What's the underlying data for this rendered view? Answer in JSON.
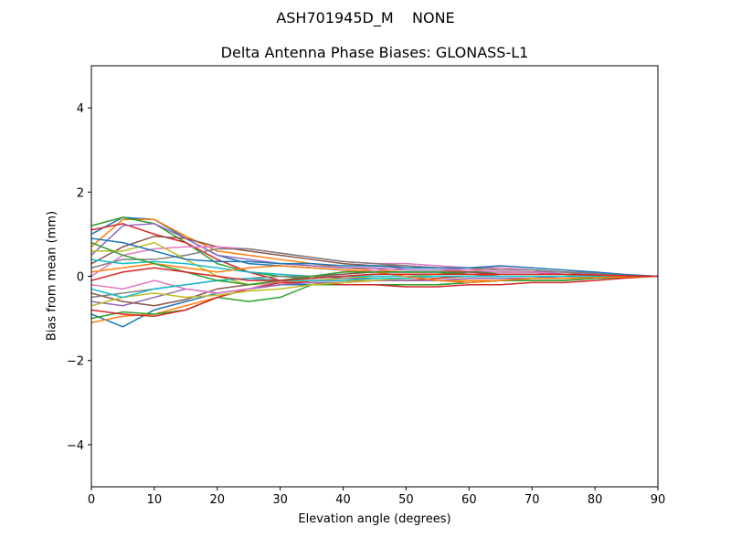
{
  "chart_data": {
    "type": "line",
    "suptitle": "ASH701945D_M    NONE",
    "title": "Delta Antenna Phase Biases: GLONASS-L1",
    "xlabel": "Elevation angle (degrees)",
    "ylabel": "Bias from mean (mm)",
    "xlim": [
      0,
      90
    ],
    "ylim": [
      -5,
      5
    ],
    "xticks": [
      "0",
      "10",
      "20",
      "30",
      "40",
      "50",
      "60",
      "70",
      "80",
      "90"
    ],
    "yticks": [
      "−4",
      "−2",
      "0",
      "2",
      "4"
    ],
    "grid": false,
    "x": [
      0,
      5,
      10,
      15,
      20,
      25,
      30,
      35,
      40,
      45,
      50,
      55,
      60,
      65,
      70,
      75,
      80,
      85,
      90
    ],
    "colors": [
      "#1f77b4",
      "#ff7f0e",
      "#2ca02c",
      "#d62728",
      "#9467bd",
      "#8c564b",
      "#e377c2",
      "#7f7f7f",
      "#bcbd22",
      "#17becf"
    ],
    "series": [
      {
        "values": [
          1.0,
          1.4,
          1.35,
          0.9,
          0.5,
          0.3,
          0.25,
          0.2,
          0.15,
          0.1,
          0.1,
          0.1,
          0.1,
          0.1,
          0.1,
          0.05,
          0.05,
          0.02,
          0
        ]
      },
      {
        "values": [
          0.7,
          1.35,
          1.35,
          0.95,
          0.6,
          0.5,
          0.4,
          0.3,
          0.2,
          0.15,
          0.1,
          0.1,
          0.15,
          0.2,
          0.15,
          0.1,
          0.05,
          0.02,
          0
        ]
      },
      {
        "values": [
          1.2,
          1.4,
          1.25,
          0.8,
          0.3,
          0.1,
          0.0,
          -0.05,
          0.0,
          0.05,
          0.05,
          0.05,
          0.1,
          0.1,
          0.1,
          0.1,
          0.05,
          0.02,
          0
        ]
      },
      {
        "values": [
          1.1,
          1.25,
          1.0,
          0.8,
          0.4,
          0.1,
          -0.1,
          -0.15,
          -0.15,
          -0.1,
          -0.1,
          -0.05,
          0,
          0.05,
          0.05,
          0.05,
          0.05,
          0.02,
          0
        ]
      },
      {
        "values": [
          0.5,
          1.2,
          1.25,
          0.9,
          0.5,
          0.4,
          0.3,
          0.25,
          0.2,
          0.2,
          0.15,
          0.15,
          0.15,
          0.1,
          0.1,
          0.1,
          0.05,
          0.02,
          0
        ]
      },
      {
        "values": [
          0.3,
          0.7,
          0.95,
          0.9,
          0.7,
          0.6,
          0.5,
          0.4,
          0.3,
          0.25,
          0.25,
          0.2,
          0.2,
          0.15,
          0.15,
          0.1,
          0.08,
          0.03,
          0
        ]
      },
      {
        "values": [
          0.0,
          0.5,
          0.65,
          0.7,
          0.7,
          0.65,
          0.55,
          0.45,
          0.35,
          0.3,
          0.3,
          0.25,
          0.2,
          0.2,
          0.15,
          0.1,
          0.08,
          0.03,
          0
        ]
      },
      {
        "values": [
          0.2,
          0.4,
          0.4,
          0.5,
          0.65,
          0.65,
          0.55,
          0.45,
          0.35,
          0.3,
          0.25,
          0.2,
          0.2,
          0.15,
          0.15,
          0.1,
          0.08,
          0.03,
          0
        ]
      },
      {
        "values": [
          0.6,
          0.6,
          0.8,
          0.4,
          0.0,
          -0.2,
          -0.15,
          -0.1,
          -0.05,
          0,
          0,
          0.05,
          0.05,
          0.05,
          0.05,
          0.05,
          0.03,
          0.01,
          0
        ]
      },
      {
        "values": [
          0.4,
          0.3,
          0.35,
          0.3,
          0.2,
          0.1,
          0.05,
          0,
          0,
          0,
          0,
          0,
          0,
          0,
          0,
          0,
          0,
          0,
          0
        ]
      },
      {
        "values": [
          -0.9,
          -1.2,
          -0.8,
          -0.6,
          -0.4,
          -0.3,
          -0.2,
          -0.2,
          -0.2,
          -0.2,
          -0.2,
          -0.2,
          -0.15,
          -0.1,
          -0.1,
          -0.1,
          -0.05,
          -0.02,
          0
        ]
      },
      {
        "values": [
          -1.1,
          -0.95,
          -0.9,
          -0.7,
          -0.5,
          -0.3,
          -0.2,
          -0.1,
          -0.1,
          -0.1,
          -0.1,
          -0.1,
          -0.1,
          -0.1,
          -0.05,
          -0.05,
          -0.03,
          -0.01,
          0
        ]
      },
      {
        "values": [
          -1.0,
          -0.85,
          -0.9,
          -0.8,
          -0.5,
          -0.6,
          -0.5,
          -0.2,
          -0.2,
          -0.2,
          -0.2,
          -0.2,
          -0.15,
          -0.1,
          -0.1,
          -0.1,
          -0.05,
          -0.02,
          0
        ]
      },
      {
        "values": [
          -0.8,
          -0.9,
          -0.95,
          -0.8,
          -0.5,
          -0.3,
          -0.15,
          -0.15,
          -0.2,
          -0.2,
          -0.25,
          -0.25,
          -0.2,
          -0.2,
          -0.15,
          -0.15,
          -0.1,
          -0.04,
          0
        ]
      },
      {
        "values": [
          -0.6,
          -0.7,
          -0.5,
          -0.3,
          -0.4,
          -0.3,
          -0.2,
          -0.15,
          -0.15,
          -0.1,
          -0.1,
          -0.1,
          -0.05,
          -0.05,
          -0.05,
          0,
          0,
          0,
          0
        ]
      },
      {
        "values": [
          -0.4,
          -0.6,
          -0.7,
          -0.55,
          -0.3,
          -0.2,
          -0.1,
          0.0,
          0.05,
          0.1,
          0.1,
          0.1,
          0.1,
          0.05,
          0.05,
          0.05,
          0.03,
          0.01,
          0
        ]
      },
      {
        "values": [
          -0.2,
          -0.3,
          -0.1,
          -0.3,
          -0.4,
          -0.3,
          -0.1,
          0.0,
          0.1,
          0.15,
          0.2,
          0.2,
          0.15,
          0.1,
          0.1,
          0.05,
          0.03,
          0.01,
          0
        ]
      },
      {
        "values": [
          -0.5,
          -0.4,
          -0.3,
          -0.2,
          -0.1,
          -0.05,
          0,
          0,
          -0.05,
          -0.05,
          -0.05,
          0,
          0,
          0,
          0,
          0,
          0,
          0,
          0
        ]
      },
      {
        "values": [
          -0.7,
          -0.5,
          -0.4,
          -0.5,
          -0.45,
          -0.35,
          -0.3,
          -0.2,
          -0.15,
          -0.1,
          -0.05,
          0,
          0,
          0,
          0,
          0,
          0,
          0,
          0
        ]
      },
      {
        "values": [
          -0.3,
          -0.5,
          -0.3,
          -0.2,
          -0.1,
          -0.05,
          -0.1,
          -0.1,
          -0.1,
          -0.05,
          -0.05,
          0,
          0,
          0,
          0,
          0,
          0,
          0,
          0
        ]
      },
      {
        "values": [
          0.9,
          0.8,
          0.6,
          0.4,
          0.35,
          0.35,
          0.3,
          0.3,
          0.25,
          0.25,
          0.2,
          0.2,
          0.2,
          0.25,
          0.2,
          0.15,
          0.1,
          0.04,
          0
        ]
      },
      {
        "values": [
          0.1,
          0.2,
          0.3,
          0.2,
          0.1,
          0.2,
          0.25,
          0.2,
          0.15,
          0.1,
          0.0,
          -0.1,
          -0.15,
          -0.1,
          -0.05,
          -0.05,
          -0.03,
          -0.01,
          0
        ]
      },
      {
        "values": [
          0.8,
          0.5,
          0.3,
          0.1,
          -0.1,
          -0.2,
          -0.1,
          0,
          0.1,
          0.1,
          0.1,
          0.1,
          0.05,
          0.05,
          0.05,
          0.05,
          0.03,
          0.01,
          0
        ]
      },
      {
        "values": [
          -0.1,
          0.1,
          0.2,
          0.1,
          0.0,
          -0.1,
          -0.1,
          -0.05,
          0.0,
          0.05,
          0.05,
          0.05,
          0.05,
          0.05,
          0.05,
          0.05,
          0.03,
          0.01,
          0
        ]
      }
    ]
  }
}
